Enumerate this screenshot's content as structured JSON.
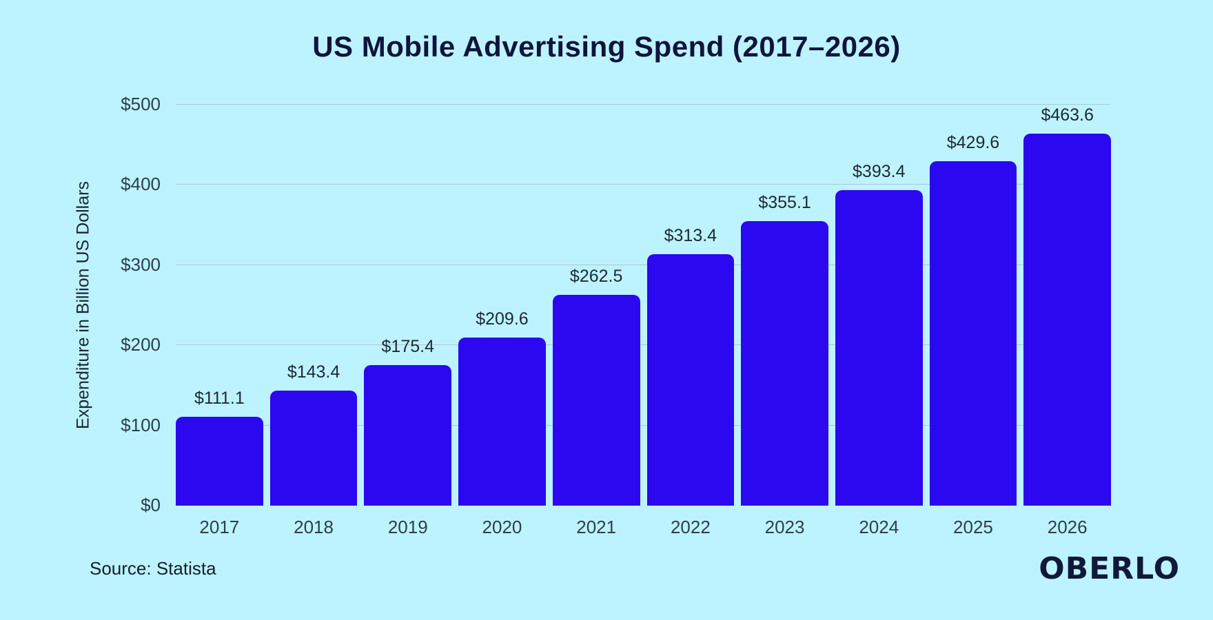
{
  "chart_data": {
    "type": "bar",
    "title": "US Mobile Advertising Spend (2017–2026)",
    "categories": [
      "2017",
      "2018",
      "2019",
      "2020",
      "2021",
      "2022",
      "2023",
      "2024",
      "2025",
      "2026"
    ],
    "values": [
      111.1,
      143.4,
      175.4,
      209.6,
      262.5,
      313.4,
      355.1,
      393.4,
      429.6,
      463.6
    ],
    "value_labels": [
      "$111.1",
      "$143.4",
      "$175.4",
      "$209.6",
      "$262.5",
      "$313.4",
      "$355.1",
      "$393.4",
      "$429.6",
      "$463.6"
    ],
    "xlabel": "",
    "ylabel": "Expenditure in Billion US Dollars",
    "ylim": [
      0,
      500
    ],
    "yticks": [
      0,
      100,
      200,
      300,
      400,
      500
    ],
    "ytick_labels": [
      "$0",
      "$100",
      "$200",
      "$300",
      "$400",
      "$500"
    ],
    "grid": true,
    "legend_position": "none"
  },
  "source": "Source: Statista",
  "logo": {
    "text": "OBERLO"
  },
  "colors": {
    "background": "#bdf3fe",
    "bar": "#2b08f0",
    "gridline": "#abc8d1",
    "title_text": "#10143c",
    "axis_tick_text": "#2c3e4e",
    "value_label_text": "#1d2935",
    "axis_label_text": "#1b2733",
    "source_text": "#141e29",
    "logo_text": "#11183a"
  }
}
